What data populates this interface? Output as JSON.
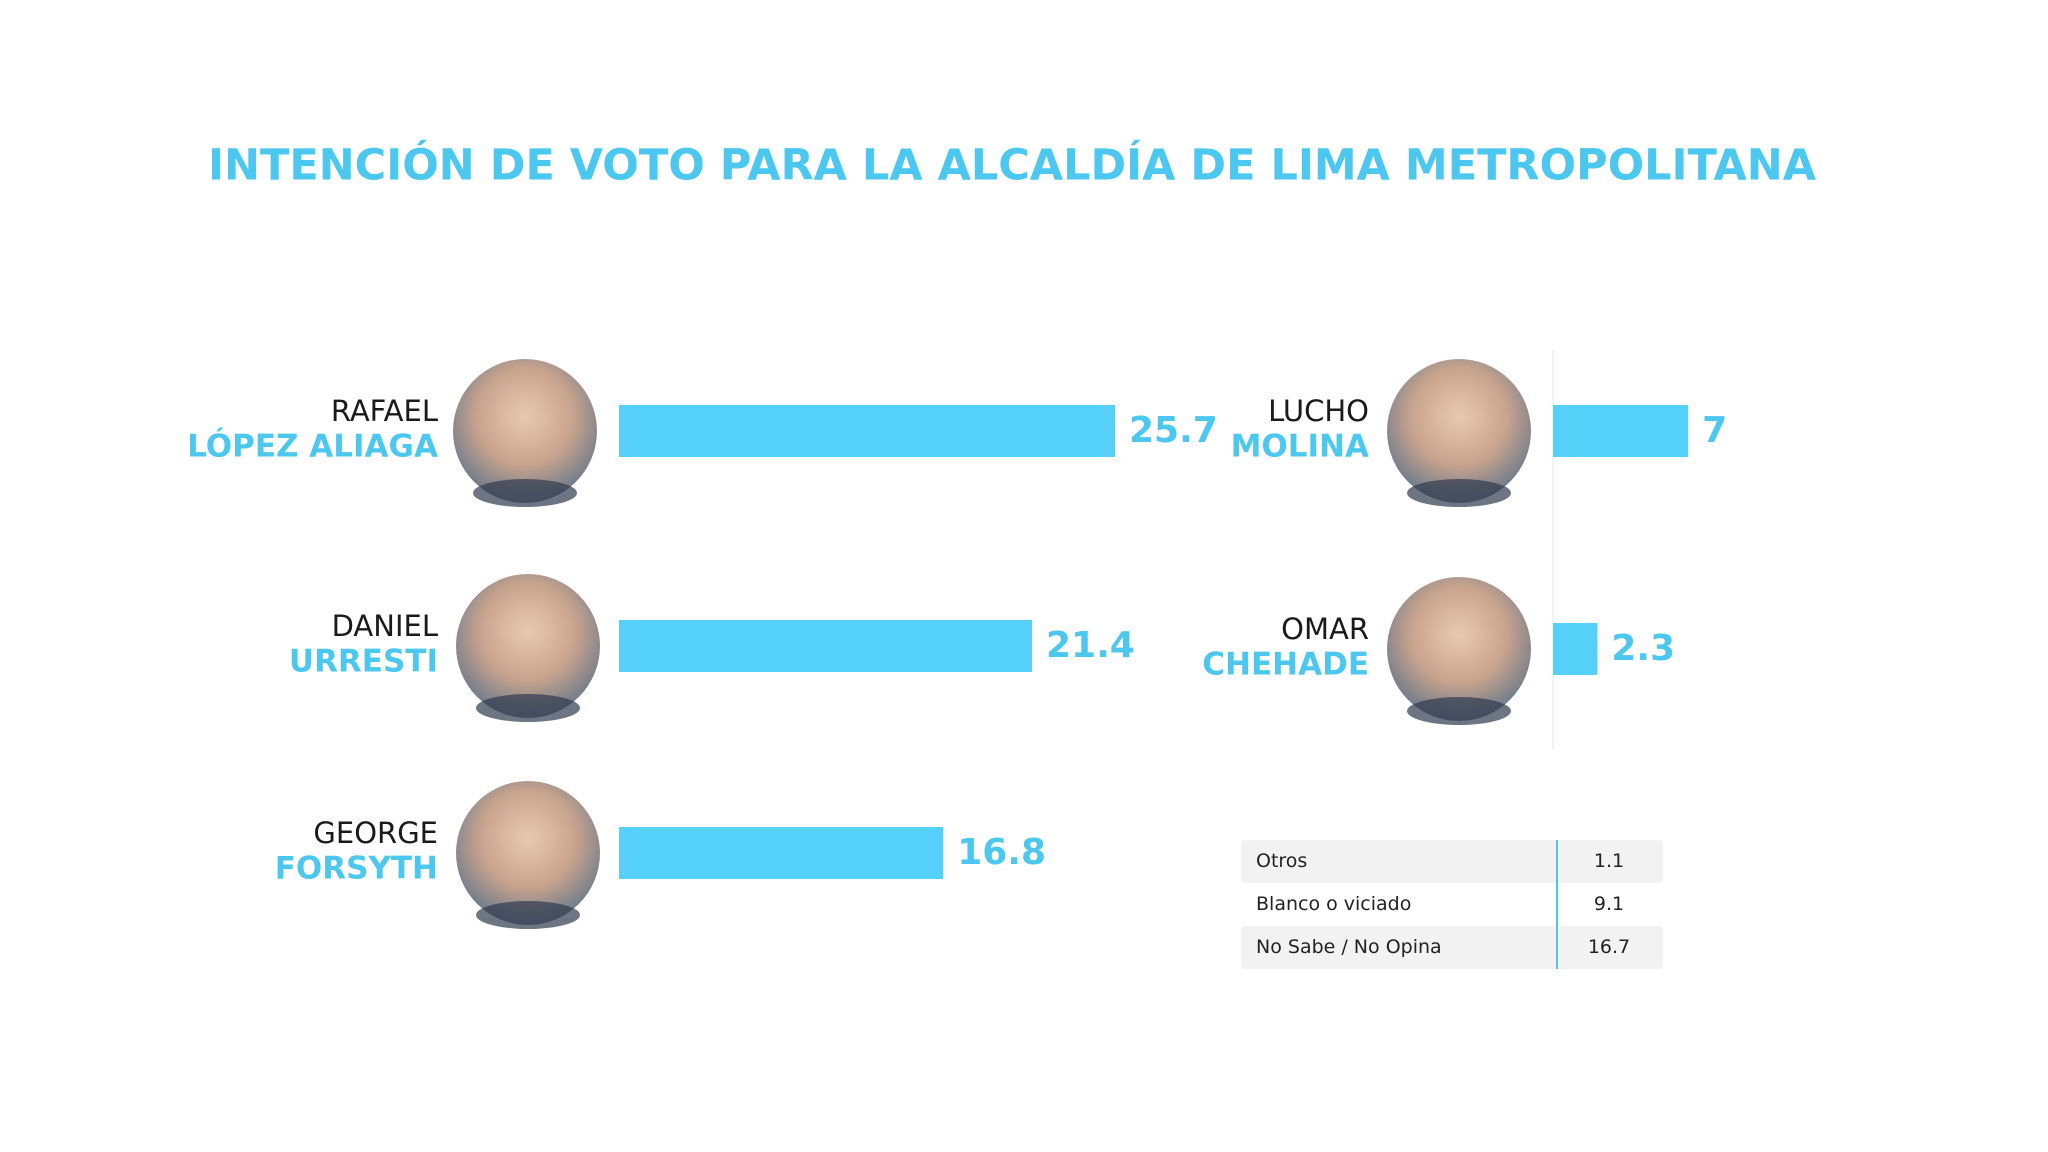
{
  "chart_data": {
    "type": "bar",
    "title": "INTENCIÓN DE VOTO PARA LA ALCALDÍA DE LIMA METROPOLITANA",
    "color": "#55d0f8",
    "candidates": [
      {
        "first": "RAFAEL",
        "last": "LÓPEZ ALIAGA",
        "value": 25.7
      },
      {
        "first": "DANIEL",
        "last": "URRESTI",
        "value": 21.4
      },
      {
        "first": "GEORGE",
        "last": "FORSYTH",
        "value": 16.8
      },
      {
        "first": "LUCHO",
        "last": "MOLINA",
        "value": 7
      },
      {
        "first": "OMAR",
        "last": "CHEHADE",
        "value": 2.3
      }
    ],
    "table": {
      "rows": [
        [
          "Otros",
          "1.1"
        ],
        [
          "Blanco o viciado",
          "9.1"
        ],
        [
          "No Sabe / No Opina",
          "16.7"
        ]
      ]
    }
  }
}
